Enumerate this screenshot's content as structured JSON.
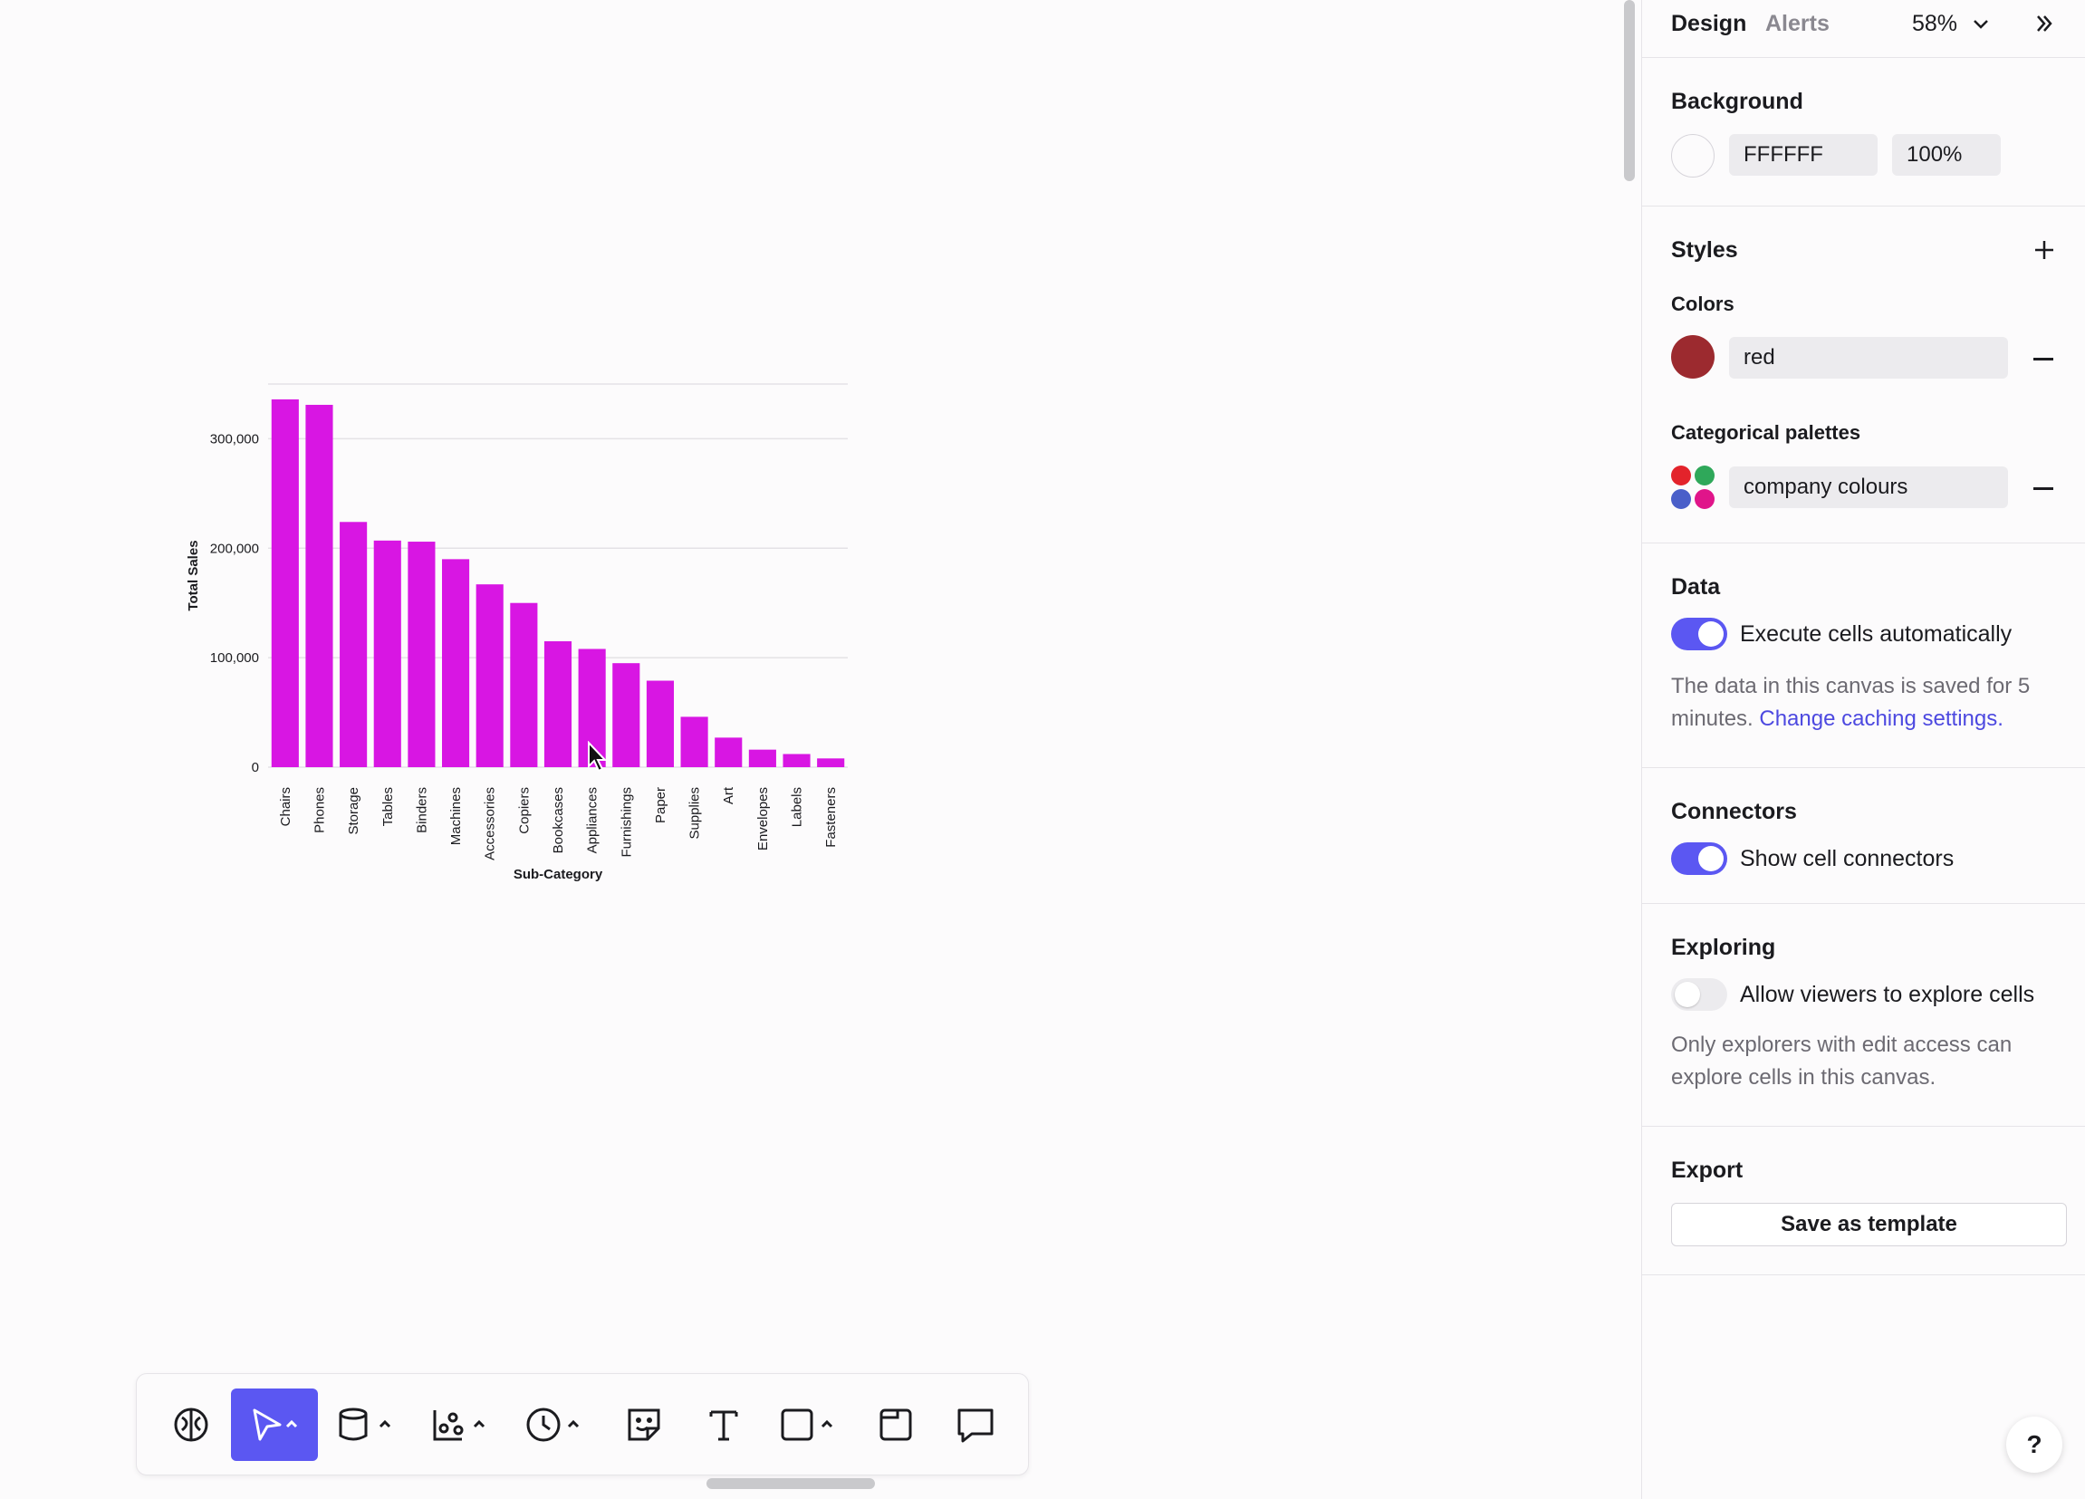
{
  "panel": {
    "tabs": [
      {
        "label": "Design"
      },
      {
        "label": "Alerts"
      }
    ],
    "zoom": "58%",
    "background": {
      "title": "Background",
      "hex": "FFFFFF",
      "opacity": "100%",
      "swatch_color": "#ffffff"
    },
    "styles": {
      "title": "Styles",
      "colors_label": "Colors",
      "color_name": "red",
      "color_swatch": "#9c2a2f",
      "palettes_label": "Categorical palettes",
      "palette_name": "company colours",
      "palette_colors": [
        "#e3232b",
        "#2fa85a",
        "#4a5fc9",
        "#e0158a"
      ]
    },
    "data": {
      "title": "Data",
      "toggle_label": "Execute cells automatically",
      "toggle_on": true,
      "note": "The data in this canvas is saved for 5 minutes.",
      "link": "Change caching settings."
    },
    "connectors": {
      "title": "Connectors",
      "toggle_label": "Show cell connectors",
      "toggle_on": true
    },
    "exploring": {
      "title": "Exploring",
      "toggle_label": "Allow viewers to explore cells",
      "toggle_on": false,
      "note": "Only explorers with edit access can explore cells in this canvas."
    },
    "export": {
      "title": "Export",
      "button": "Save as template"
    },
    "help": "?"
  },
  "toolbar": {
    "items": [
      "ai-brain-icon",
      "pointer-icon",
      "database-icon",
      "chart-icon",
      "clock-icon",
      "sticky-note-icon",
      "text-icon",
      "shape-icon",
      "frame-icon",
      "comment-icon"
    ],
    "active": "pointer-icon"
  },
  "chart_data": {
    "type": "bar",
    "xlabel": "Sub-Category",
    "ylabel": "Total Sales",
    "ylim": [
      0,
      350000
    ],
    "yticks": [
      0,
      100000,
      200000,
      300000
    ],
    "ytick_labels": [
      "0",
      "100,000",
      "200,000",
      "300,000"
    ],
    "bar_color": "#d816e3",
    "grid": true,
    "categories": [
      "Chairs",
      "Phones",
      "Storage",
      "Tables",
      "Binders",
      "Machines",
      "Accessories",
      "Copiers",
      "Bookcases",
      "Appliances",
      "Furnishings",
      "Paper",
      "Supplies",
      "Art",
      "Envelopes",
      "Labels",
      "Fasteners"
    ],
    "values": [
      336000,
      331000,
      224000,
      207000,
      206000,
      190000,
      167000,
      150000,
      115000,
      108000,
      95000,
      79000,
      46000,
      27000,
      16000,
      12000,
      8000
    ]
  }
}
